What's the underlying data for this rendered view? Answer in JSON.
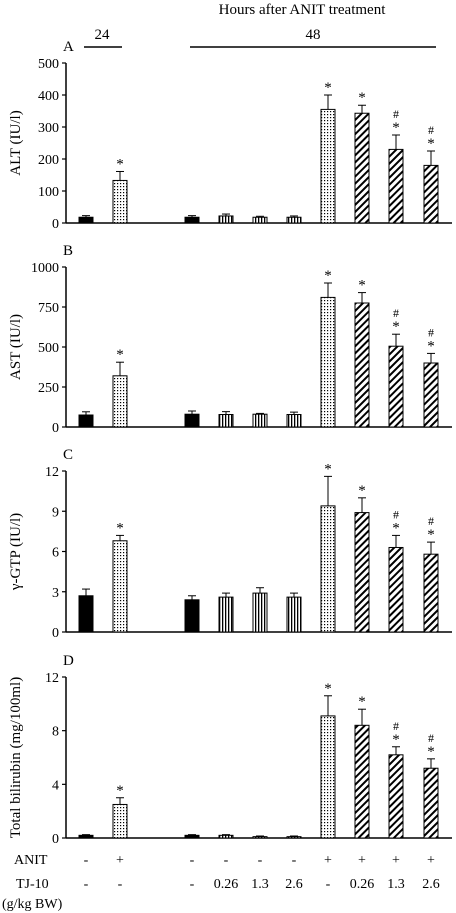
{
  "header": {
    "title": "Hours after ANIT treatment",
    "group_24": "24",
    "group_48": "48"
  },
  "colors": {
    "ink": "#000000",
    "background": "#ffffff"
  },
  "chart_data": [
    {
      "type": "bar",
      "panel_letter": "A",
      "ylabel": "ALT (IU/l)",
      "ylim": [
        0,
        500
      ],
      "yticks": [
        "0",
        "100",
        "200",
        "300",
        "400",
        "500"
      ],
      "values": [
        18,
        133,
        18,
        22,
        18,
        18,
        355,
        343,
        230,
        180
      ],
      "errors": [
        5,
        28,
        5,
        6,
        3,
        4,
        45,
        25,
        45,
        45
      ],
      "star": [
        false,
        true,
        false,
        false,
        false,
        false,
        true,
        true,
        true,
        true
      ],
      "hash": [
        false,
        false,
        false,
        false,
        false,
        false,
        false,
        false,
        true,
        true
      ]
    },
    {
      "type": "bar",
      "panel_letter": "B",
      "ylabel": "AST (IU/l)",
      "ylim": [
        0,
        1000
      ],
      "yticks": [
        "0",
        "250",
        "500",
        "750",
        "1000"
      ],
      "values": [
        75,
        320,
        80,
        78,
        80,
        78,
        810,
        775,
        505,
        400
      ],
      "errors": [
        20,
        85,
        20,
        18,
        5,
        15,
        90,
        65,
        75,
        60
      ],
      "star": [
        false,
        true,
        false,
        false,
        false,
        false,
        true,
        true,
        true,
        true
      ],
      "hash": [
        false,
        false,
        false,
        false,
        false,
        false,
        false,
        false,
        true,
        true
      ]
    },
    {
      "type": "bar",
      "panel_letter": "C",
      "ylabel": "γ-GTP (IU/l)",
      "ylim": [
        0,
        12
      ],
      "yticks": [
        "0",
        "3",
        "6",
        "9",
        "12"
      ],
      "values": [
        2.7,
        6.8,
        2.4,
        2.6,
        2.9,
        2.6,
        9.4,
        8.9,
        6.3,
        5.8
      ],
      "errors": [
        0.5,
        0.4,
        0.3,
        0.3,
        0.4,
        0.3,
        2.2,
        1.1,
        0.9,
        0.9
      ],
      "star": [
        false,
        true,
        false,
        false,
        false,
        false,
        true,
        true,
        true,
        true
      ],
      "hash": [
        false,
        false,
        false,
        false,
        false,
        false,
        false,
        false,
        true,
        true
      ]
    },
    {
      "type": "bar",
      "panel_letter": "D",
      "ylabel": "Total bilirubin (mg/100ml)",
      "ylim": [
        0,
        12
      ],
      "yticks": [
        "0",
        "4",
        "8",
        "12"
      ],
      "values": [
        0.2,
        2.5,
        0.2,
        0.2,
        0.1,
        0.1,
        9.1,
        8.4,
        6.2,
        5.2
      ],
      "errors": [
        0.05,
        0.5,
        0.05,
        0.05,
        0.05,
        0.05,
        1.5,
        1.2,
        0.6,
        0.7
      ],
      "star": [
        false,
        true,
        false,
        false,
        false,
        false,
        true,
        true,
        true,
        true
      ],
      "hash": [
        false,
        false,
        false,
        false,
        false,
        false,
        false,
        false,
        true,
        true
      ]
    }
  ],
  "bar_styles": [
    "solid",
    "dots",
    "solid",
    "vstripe",
    "vstripe",
    "vstripe",
    "dots",
    "diag",
    "diag",
    "diag"
  ],
  "treatments": {
    "anit_label": "ANIT",
    "anit": [
      "-",
      "+",
      "-",
      "-",
      "-",
      "-",
      "+",
      "+",
      "+",
      "+"
    ],
    "tj_label": "TJ-10",
    "tj": [
      "-",
      "-",
      "-",
      "0.26",
      "1.3",
      "2.6",
      "-",
      "0.26",
      "1.3",
      "2.6"
    ],
    "unit_label": "(g/kg BW)"
  },
  "markers": {
    "star": "*",
    "hash": "#"
  }
}
